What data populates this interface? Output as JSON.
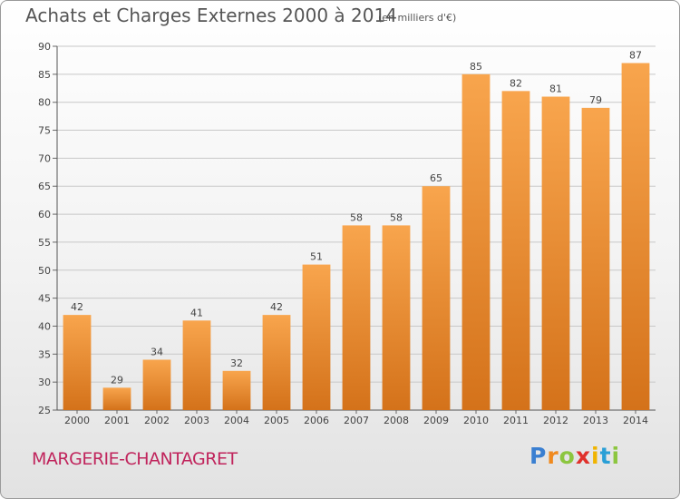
{
  "chart_data": {
    "type": "bar",
    "title": "Achats et Charges Externes 2000 à 2014",
    "subtitle": "(en milliers d'€)",
    "categories": [
      "2000",
      "2001",
      "2002",
      "2003",
      "2004",
      "2005",
      "2006",
      "2007",
      "2008",
      "2009",
      "2010",
      "2011",
      "2012",
      "2013",
      "2014"
    ],
    "values": [
      42,
      29,
      34,
      41,
      32,
      42,
      51,
      58,
      58,
      65,
      85,
      82,
      81,
      79,
      87
    ],
    "ylim": [
      25,
      90
    ],
    "yticks": [
      25,
      30,
      35,
      40,
      45,
      50,
      55,
      60,
      65,
      70,
      75,
      80,
      85,
      90
    ],
    "grid": true,
    "bar_color": "#f39a3c"
  },
  "footer": {
    "city": "MARGERIE-CHANTAGRET",
    "brand_letters": [
      "P",
      "r",
      "o",
      "x",
      "i",
      "t",
      "i"
    ],
    "brand_colors": [
      "#3a7fd1",
      "#f08a1e",
      "#8cc63f",
      "#e0312b",
      "#f0b400",
      "#2a9fd6",
      "#8cc63f"
    ]
  }
}
